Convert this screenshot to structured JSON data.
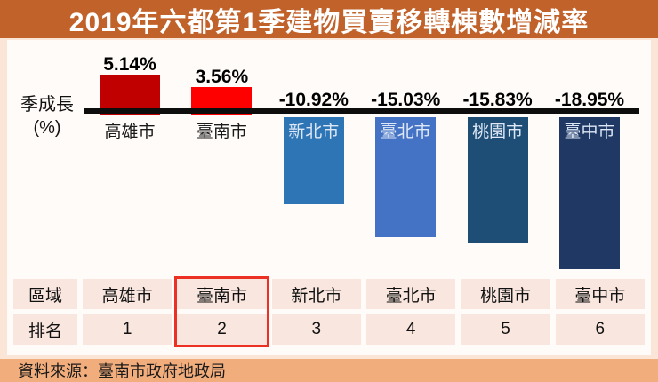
{
  "title": "2019年六都第1季建物買賣移轉棟數增減率",
  "y_axis": {
    "line1": "季成長",
    "line2": "(%)"
  },
  "source": "資料來源：臺南市政府地政局",
  "chart_data": {
    "type": "bar",
    "title": "2019年六都第1季建物買賣移轉棟數增減率",
    "xlabel": "",
    "ylabel": "季成長(%)",
    "ylim": [
      -20,
      6
    ],
    "grid": false,
    "legend": false,
    "categories": [
      "高雄市",
      "臺南市",
      "新北市",
      "臺北市",
      "桃園市",
      "臺中市"
    ],
    "values": [
      5.14,
      3.56,
      -10.92,
      -15.03,
      -15.83,
      -18.95
    ],
    "value_labels": [
      "5.14%",
      "3.56%",
      "-10.92%",
      "-15.03%",
      "-15.83%",
      "-18.95%"
    ],
    "colors": [
      "#C00000",
      "#FF0000",
      "#2E75B6",
      "#4472C4",
      "#1E4E76",
      "#203864"
    ],
    "highlighted_category": "臺南市",
    "highlight_color": "#ED3024"
  },
  "table": {
    "region_header": "區域",
    "rank_header": "排名",
    "cities": [
      "高雄市",
      "臺南市",
      "新北市",
      "臺北市",
      "桃園市",
      "臺中市"
    ],
    "ranks": [
      "1",
      "2",
      "3",
      "4",
      "5",
      "6"
    ]
  },
  "theme": {
    "page_bg": "#FBE5D6",
    "title_bar_bg": "#C2622B",
    "panel_bg": "#FFFBF8",
    "source_bar_bg": "#F2AD7C",
    "table_cell_bg": "#F9E7DF",
    "axis_color": "#0D0D0D"
  }
}
